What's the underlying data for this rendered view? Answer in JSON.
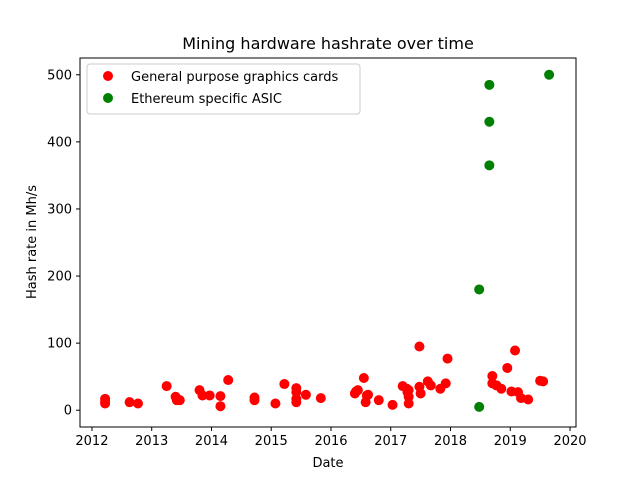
{
  "chart_data": {
    "type": "scatter",
    "title": "Mining hardware hashrate over time",
    "xlabel": "Date",
    "ylabel": "Hash rate in Mh/s",
    "xlim": [
      2011.8,
      2020.1
    ],
    "ylim": [
      -25,
      525
    ],
    "xticks": [
      2012,
      2013,
      2014,
      2015,
      2016,
      2017,
      2018,
      2019,
      2020
    ],
    "yticks": [
      0,
      100,
      200,
      300,
      400,
      500
    ],
    "grid": false,
    "legend": "top-left",
    "series": [
      {
        "name": "General purpose graphics cards",
        "color": "#ff0000",
        "points": [
          [
            2012.22,
            17
          ],
          [
            2012.22,
            13
          ],
          [
            2012.22,
            10
          ],
          [
            2012.63,
            12
          ],
          [
            2012.77,
            10
          ],
          [
            2013.25,
            36
          ],
          [
            2013.4,
            20
          ],
          [
            2013.42,
            15
          ],
          [
            2013.47,
            15
          ],
          [
            2013.8,
            30
          ],
          [
            2013.85,
            22
          ],
          [
            2013.97,
            22
          ],
          [
            2014.15,
            21
          ],
          [
            2014.15,
            6
          ],
          [
            2014.28,
            45
          ],
          [
            2014.72,
            19
          ],
          [
            2014.72,
            15
          ],
          [
            2015.07,
            10
          ],
          [
            2015.22,
            39
          ],
          [
            2015.42,
            33
          ],
          [
            2015.42,
            27
          ],
          [
            2015.42,
            17
          ],
          [
            2015.42,
            12
          ],
          [
            2015.58,
            23
          ],
          [
            2015.83,
            18
          ],
          [
            2016.4,
            25
          ],
          [
            2016.42,
            28
          ],
          [
            2016.45,
            30
          ],
          [
            2016.55,
            48
          ],
          [
            2016.58,
            12
          ],
          [
            2016.6,
            22
          ],
          [
            2016.62,
            23
          ],
          [
            2016.8,
            15
          ],
          [
            2017.03,
            8
          ],
          [
            2017.2,
            36
          ],
          [
            2017.27,
            32
          ],
          [
            2017.28,
            27
          ],
          [
            2017.3,
            10
          ],
          [
            2017.3,
            20
          ],
          [
            2017.3,
            30
          ],
          [
            2017.48,
            95
          ],
          [
            2017.48,
            35
          ],
          [
            2017.5,
            25
          ],
          [
            2017.62,
            43
          ],
          [
            2017.67,
            37
          ],
          [
            2017.83,
            32
          ],
          [
            2017.92,
            40
          ],
          [
            2017.95,
            77
          ],
          [
            2018.7,
            51
          ],
          [
            2018.7,
            40
          ],
          [
            2018.77,
            37
          ],
          [
            2018.85,
            32
          ],
          [
            2018.95,
            63
          ],
          [
            2019.02,
            28
          ],
          [
            2019.08,
            89
          ],
          [
            2019.13,
            27
          ],
          [
            2019.18,
            18
          ],
          [
            2019.3,
            16
          ],
          [
            2019.5,
            44
          ],
          [
            2019.55,
            43
          ]
        ]
      },
      {
        "name": "Ethereum specific ASIC",
        "color": "#008000",
        "points": [
          [
            2018.48,
            5
          ],
          [
            2018.48,
            180
          ],
          [
            2018.65,
            485
          ],
          [
            2018.65,
            430
          ],
          [
            2018.65,
            365
          ],
          [
            2019.65,
            500
          ]
        ]
      }
    ]
  }
}
